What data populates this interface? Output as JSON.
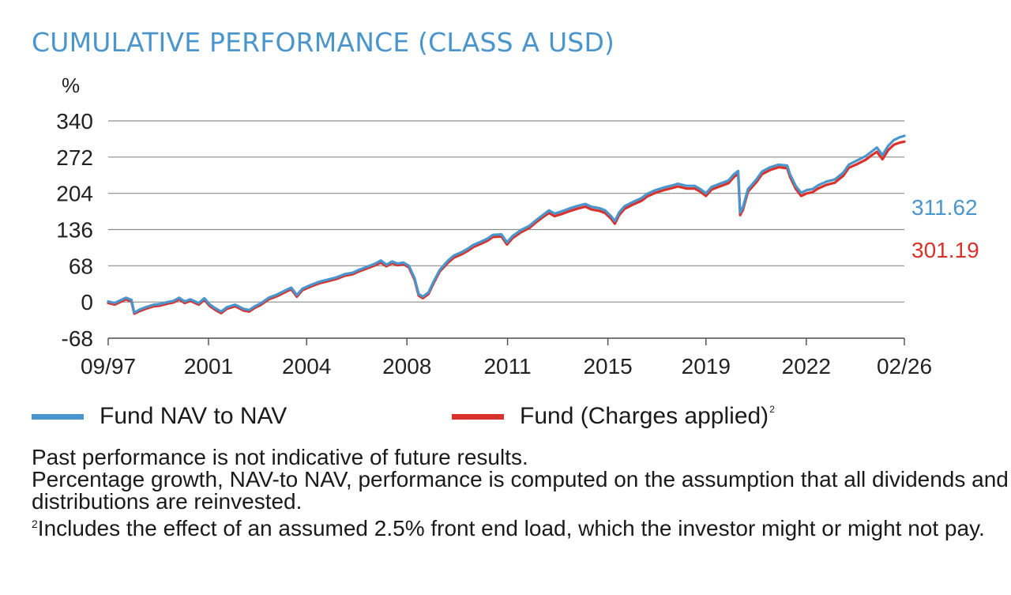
{
  "title": "CUMULATIVE PERFORMANCE (CLASS A USD)",
  "colors": {
    "title": "#4a96cc",
    "nav": "#4a96cc",
    "charges": "#d9312b",
    "grid": "#8c8c8c"
  },
  "chart_data": {
    "type": "line",
    "title": "CUMULATIVE PERFORMANCE (CLASS A USD)",
    "ylabel": "%",
    "xlabel": "",
    "ylim": [
      -68,
      340
    ],
    "yticks": [
      340,
      272,
      204,
      136,
      68,
      0,
      -68
    ],
    "xlim": [
      1997.67,
      2026.08
    ],
    "xticks": [
      {
        "label": "09/97",
        "x": 1997.67
      },
      {
        "label": "2001",
        "x": 2001.25
      },
      {
        "label": "2004",
        "x": 2004.75
      },
      {
        "label": "2008",
        "x": 2008.33
      },
      {
        "label": "2011",
        "x": 2011.92
      },
      {
        "label": "2015",
        "x": 2015.5
      },
      {
        "label": "2019",
        "x": 2019.0
      },
      {
        "label": "2022",
        "x": 2022.58
      },
      {
        "label": "02/26",
        "x": 2026.08
      }
    ],
    "grid": true,
    "legend": "bottom",
    "series": [
      {
        "name": "Fund NAV to NAV",
        "color": "#4a96cc",
        "end_value": "311.62",
        "points": [
          [
            1997.67,
            1
          ],
          [
            1997.9,
            -2
          ],
          [
            1998.1,
            3
          ],
          [
            1998.3,
            8
          ],
          [
            1998.5,
            4
          ],
          [
            1998.6,
            -20
          ],
          [
            1998.8,
            -14
          ],
          [
            1999.0,
            -10
          ],
          [
            1999.3,
            -5
          ],
          [
            1999.5,
            -4
          ],
          [
            1999.8,
            0
          ],
          [
            2000.0,
            2
          ],
          [
            2000.2,
            8
          ],
          [
            2000.4,
            1
          ],
          [
            2000.6,
            5
          ],
          [
            2000.9,
            -2
          ],
          [
            2001.1,
            7
          ],
          [
            2001.3,
            -5
          ],
          [
            2001.5,
            -12
          ],
          [
            2001.7,
            -18
          ],
          [
            2001.9,
            -10
          ],
          [
            2002.2,
            -5
          ],
          [
            2002.5,
            -13
          ],
          [
            2002.7,
            -15
          ],
          [
            2002.9,
            -8
          ],
          [
            2003.1,
            -3
          ],
          [
            2003.4,
            8
          ],
          [
            2003.7,
            14
          ],
          [
            2004.0,
            22
          ],
          [
            2004.2,
            27
          ],
          [
            2004.4,
            13
          ],
          [
            2004.6,
            25
          ],
          [
            2004.9,
            32
          ],
          [
            2005.2,
            38
          ],
          [
            2005.5,
            42
          ],
          [
            2005.8,
            46
          ],
          [
            2006.1,
            52
          ],
          [
            2006.4,
            55
          ],
          [
            2006.6,
            60
          ],
          [
            2006.9,
            66
          ],
          [
            2007.2,
            72
          ],
          [
            2007.4,
            78
          ],
          [
            2007.6,
            70
          ],
          [
            2007.8,
            76
          ],
          [
            2008.0,
            72
          ],
          [
            2008.2,
            74
          ],
          [
            2008.4,
            68
          ],
          [
            2008.6,
            45
          ],
          [
            2008.75,
            15
          ],
          [
            2008.9,
            10
          ],
          [
            2009.1,
            18
          ],
          [
            2009.3,
            40
          ],
          [
            2009.5,
            60
          ],
          [
            2009.8,
            78
          ],
          [
            2010.0,
            87
          ],
          [
            2010.3,
            94
          ],
          [
            2010.5,
            100
          ],
          [
            2010.7,
            107
          ],
          [
            2011.0,
            114
          ],
          [
            2011.2,
            119
          ],
          [
            2011.4,
            126
          ],
          [
            2011.7,
            127
          ],
          [
            2011.9,
            112
          ],
          [
            2012.1,
            124
          ],
          [
            2012.4,
            135
          ],
          [
            2012.7,
            143
          ],
          [
            2012.9,
            152
          ],
          [
            2013.2,
            164
          ],
          [
            2013.4,
            172
          ],
          [
            2013.6,
            166
          ],
          [
            2013.9,
            171
          ],
          [
            2014.1,
            175
          ],
          [
            2014.4,
            180
          ],
          [
            2014.7,
            184
          ],
          [
            2014.9,
            179
          ],
          [
            2015.2,
            176
          ],
          [
            2015.4,
            172
          ],
          [
            2015.6,
            162
          ],
          [
            2015.75,
            152
          ],
          [
            2015.9,
            168
          ],
          [
            2016.1,
            180
          ],
          [
            2016.4,
            188
          ],
          [
            2016.7,
            195
          ],
          [
            2016.9,
            203
          ],
          [
            2017.2,
            210
          ],
          [
            2017.5,
            215
          ],
          [
            2017.8,
            219
          ],
          [
            2018.0,
            222
          ],
          [
            2018.3,
            218
          ],
          [
            2018.6,
            218
          ],
          [
            2018.8,
            212
          ],
          [
            2019.0,
            204
          ],
          [
            2019.2,
            216
          ],
          [
            2019.5,
            222
          ],
          [
            2019.8,
            228
          ],
          [
            2020.0,
            240
          ],
          [
            2020.15,
            246
          ],
          [
            2020.22,
            168
          ],
          [
            2020.32,
            178
          ],
          [
            2020.5,
            212
          ],
          [
            2020.8,
            230
          ],
          [
            2021.0,
            245
          ],
          [
            2021.3,
            253
          ],
          [
            2021.6,
            258
          ],
          [
            2021.9,
            256
          ],
          [
            2022.0,
            240
          ],
          [
            2022.2,
            218
          ],
          [
            2022.4,
            205
          ],
          [
            2022.6,
            210
          ],
          [
            2022.8,
            212
          ],
          [
            2023.0,
            219
          ],
          [
            2023.3,
            226
          ],
          [
            2023.6,
            230
          ],
          [
            2023.9,
            243
          ],
          [
            2024.1,
            258
          ],
          [
            2024.4,
            266
          ],
          [
            2024.7,
            274
          ],
          [
            2024.9,
            282
          ],
          [
            2025.1,
            290
          ],
          [
            2025.3,
            276
          ],
          [
            2025.5,
            293
          ],
          [
            2025.7,
            304
          ],
          [
            2025.9,
            309
          ],
          [
            2026.08,
            312
          ]
        ]
      },
      {
        "name": "Fund (Charges applied)",
        "superscript": "2",
        "color": "#d9312b",
        "end_value": "301.19",
        "points": [
          [
            1997.67,
            -2
          ],
          [
            1997.9,
            -5
          ],
          [
            1998.1,
            0
          ],
          [
            1998.3,
            5
          ],
          [
            1998.5,
            1
          ],
          [
            1998.6,
            -22
          ],
          [
            1998.8,
            -17
          ],
          [
            1999.0,
            -13
          ],
          [
            1999.3,
            -8
          ],
          [
            1999.5,
            -7
          ],
          [
            1999.8,
            -3
          ],
          [
            2000.0,
            -1
          ],
          [
            2000.2,
            5
          ],
          [
            2000.4,
            -2
          ],
          [
            2000.6,
            2
          ],
          [
            2000.9,
            -5
          ],
          [
            2001.1,
            4
          ],
          [
            2001.3,
            -8
          ],
          [
            2001.5,
            -15
          ],
          [
            2001.7,
            -21
          ],
          [
            2001.9,
            -13
          ],
          [
            2002.2,
            -8
          ],
          [
            2002.5,
            -16
          ],
          [
            2002.7,
            -18
          ],
          [
            2002.9,
            -11
          ],
          [
            2003.1,
            -6
          ],
          [
            2003.4,
            5
          ],
          [
            2003.7,
            11
          ],
          [
            2004.0,
            19
          ],
          [
            2004.2,
            24
          ],
          [
            2004.4,
            10
          ],
          [
            2004.6,
            22
          ],
          [
            2004.9,
            29
          ],
          [
            2005.2,
            35
          ],
          [
            2005.5,
            39
          ],
          [
            2005.8,
            43
          ],
          [
            2006.1,
            49
          ],
          [
            2006.4,
            52
          ],
          [
            2006.6,
            57
          ],
          [
            2006.9,
            63
          ],
          [
            2007.2,
            69
          ],
          [
            2007.4,
            74
          ],
          [
            2007.6,
            67
          ],
          [
            2007.8,
            73
          ],
          [
            2008.0,
            69
          ],
          [
            2008.2,
            71
          ],
          [
            2008.4,
            65
          ],
          [
            2008.6,
            42
          ],
          [
            2008.75,
            12
          ],
          [
            2008.9,
            7
          ],
          [
            2009.1,
            15
          ],
          [
            2009.3,
            37
          ],
          [
            2009.5,
            57
          ],
          [
            2009.8,
            74
          ],
          [
            2010.0,
            83
          ],
          [
            2010.3,
            90
          ],
          [
            2010.5,
            96
          ],
          [
            2010.7,
            103
          ],
          [
            2011.0,
            110
          ],
          [
            2011.2,
            115
          ],
          [
            2011.4,
            122
          ],
          [
            2011.7,
            123
          ],
          [
            2011.9,
            108
          ],
          [
            2012.1,
            120
          ],
          [
            2012.4,
            131
          ],
          [
            2012.7,
            139
          ],
          [
            2012.9,
            148
          ],
          [
            2013.2,
            160
          ],
          [
            2013.4,
            167
          ],
          [
            2013.6,
            161
          ],
          [
            2013.9,
            166
          ],
          [
            2014.1,
            170
          ],
          [
            2014.4,
            175
          ],
          [
            2014.7,
            179
          ],
          [
            2014.9,
            174
          ],
          [
            2015.2,
            171
          ],
          [
            2015.4,
            167
          ],
          [
            2015.6,
            157
          ],
          [
            2015.75,
            147
          ],
          [
            2015.9,
            163
          ],
          [
            2016.1,
            175
          ],
          [
            2016.4,
            183
          ],
          [
            2016.7,
            190
          ],
          [
            2016.9,
            198
          ],
          [
            2017.2,
            205
          ],
          [
            2017.5,
            210
          ],
          [
            2017.8,
            214
          ],
          [
            2018.0,
            217
          ],
          [
            2018.3,
            213
          ],
          [
            2018.6,
            213
          ],
          [
            2018.8,
            207
          ],
          [
            2019.0,
            199
          ],
          [
            2019.2,
            211
          ],
          [
            2019.5,
            217
          ],
          [
            2019.8,
            223
          ],
          [
            2020.0,
            235
          ],
          [
            2020.15,
            240
          ],
          [
            2020.22,
            163
          ],
          [
            2020.32,
            173
          ],
          [
            2020.5,
            207
          ],
          [
            2020.8,
            225
          ],
          [
            2021.0,
            240
          ],
          [
            2021.3,
            248
          ],
          [
            2021.6,
            253
          ],
          [
            2021.9,
            251
          ],
          [
            2022.0,
            235
          ],
          [
            2022.2,
            213
          ],
          [
            2022.4,
            199
          ],
          [
            2022.6,
            204
          ],
          [
            2022.8,
            206
          ],
          [
            2023.0,
            213
          ],
          [
            2023.3,
            220
          ],
          [
            2023.6,
            224
          ],
          [
            2023.9,
            237
          ],
          [
            2024.1,
            252
          ],
          [
            2024.4,
            259
          ],
          [
            2024.7,
            267
          ],
          [
            2024.9,
            275
          ],
          [
            2025.1,
            282
          ],
          [
            2025.3,
            268
          ],
          [
            2025.5,
            285
          ],
          [
            2025.7,
            295
          ],
          [
            2025.9,
            299
          ],
          [
            2026.08,
            301
          ]
        ]
      }
    ]
  },
  "notes": {
    "bold_line": "Past performance is not indicative of future results.",
    "line1": "Percentage growth, NAV-to NAV, performance is computed on the assumption that all dividends and distributions are reinvested.",
    "footnote_marker": "2",
    "line2": "Includes the effect of an assumed 2.5% front end load, which the investor might or might not pay."
  }
}
